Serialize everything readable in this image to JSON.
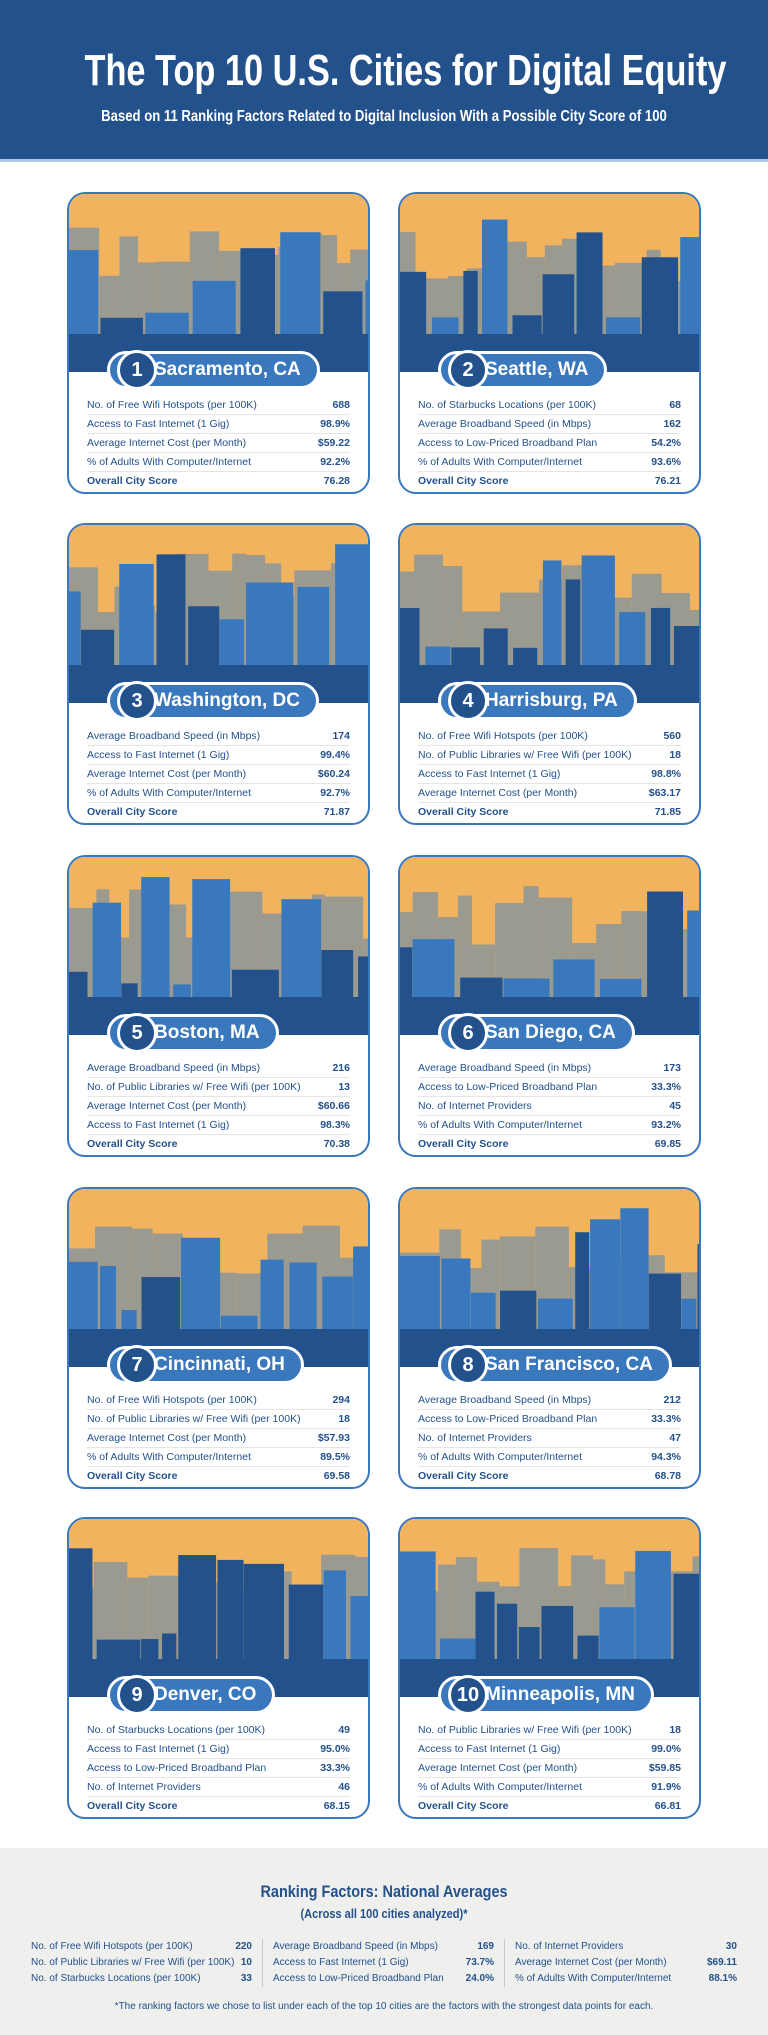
{
  "header": {
    "title": "The Top 10 U.S. Cities for Digital Equity",
    "subtitle": "Based on 11 Ranking Factors Related to Digital Inclusion With a Possible City Score of 100"
  },
  "colors": {
    "navy": "#23518c",
    "blue": "#3a78bd",
    "sky": "#f2b35e",
    "gray": "#9a9a90"
  },
  "cities": [
    {
      "rank": "1",
      "name": "Sacramento, CA",
      "rows": [
        [
          "No. of Free Wifi Hotspots (per 100K)",
          "688"
        ],
        [
          "Access to Fast Internet (1 Gig)",
          "98.9%"
        ],
        [
          "Average Internet Cost (per Month)",
          "$59.22"
        ],
        [
          "% of Adults With Computer/Internet",
          "92.2%"
        ],
        [
          "Overall City Score",
          "76.28"
        ]
      ]
    },
    {
      "rank": "2",
      "name": "Seattle, WA",
      "rows": [
        [
          "No. of Starbucks Locations (per 100K)",
          "68"
        ],
        [
          "Average Broadband Speed (in Mbps)",
          "162"
        ],
        [
          "Access to Low-Priced Broadband Plan",
          "54.2%"
        ],
        [
          "% of Adults With Computer/Internet",
          "93.6%"
        ],
        [
          "Overall City Score",
          "76.21"
        ]
      ]
    },
    {
      "rank": "3",
      "name": "Washington, DC",
      "rows": [
        [
          "Average Broadband Speed (in Mbps)",
          "174"
        ],
        [
          "Access to Fast Internet (1 Gig)",
          "99.4%"
        ],
        [
          "Average Internet Cost (per Month)",
          "$60.24"
        ],
        [
          "% of Adults With Computer/Internet",
          "92.7%"
        ],
        [
          "Overall City Score",
          "71.87"
        ]
      ]
    },
    {
      "rank": "4",
      "name": "Harrisburg, PA",
      "rows": [
        [
          "No. of Free Wifi Hotspots (per 100K)",
          "560"
        ],
        [
          "No. of Public Libraries w/ Free Wifi (per 100K)",
          "18"
        ],
        [
          "Access to Fast Internet (1 Gig)",
          "98.8%"
        ],
        [
          "Average Internet Cost (per Month)",
          "$63.17"
        ],
        [
          "Overall City Score",
          "71.85"
        ]
      ]
    },
    {
      "rank": "5",
      "name": "Boston, MA",
      "rows": [
        [
          "Average Broadband Speed (in Mbps)",
          "216"
        ],
        [
          "No. of Public Libraries w/ Free Wifi (per 100K)",
          "13"
        ],
        [
          "Average Internet Cost (per Month)",
          "$60.66"
        ],
        [
          "Access to Fast Internet (1 Gig)",
          "98.3%"
        ],
        [
          "Overall City Score",
          "70.38"
        ]
      ]
    },
    {
      "rank": "6",
      "name": "San Diego, CA",
      "rows": [
        [
          "Average Broadband Speed (in Mbps)",
          "173"
        ],
        [
          "Access to Low-Priced Broadband Plan",
          "33.3%"
        ],
        [
          "No. of Internet Providers",
          "45"
        ],
        [
          "% of Adults With Computer/Internet",
          "93.2%"
        ],
        [
          "Overall City Score",
          "69.85"
        ]
      ]
    },
    {
      "rank": "7",
      "name": "Cincinnati, OH",
      "rows": [
        [
          "No. of Free Wifi Hotspots (per 100K)",
          "294"
        ],
        [
          "No. of Public Libraries w/ Free Wifi (per 100K)",
          "18"
        ],
        [
          "Average Internet Cost (per Month)",
          "$57.93"
        ],
        [
          "% of Adults With Computer/Internet",
          "89.5%"
        ],
        [
          "Overall City Score",
          "69.58"
        ]
      ]
    },
    {
      "rank": "8",
      "name": "San Francisco, CA",
      "rows": [
        [
          "Average Broadband Speed (in Mbps)",
          "212"
        ],
        [
          "Access to Low-Priced Broadband Plan",
          "33.3%"
        ],
        [
          "No. of Internet Providers",
          "47"
        ],
        [
          "% of Adults With Computer/Internet",
          "94.3%"
        ],
        [
          "Overall City Score",
          "68.78"
        ]
      ]
    },
    {
      "rank": "9",
      "name": "Denver, CO",
      "rows": [
        [
          "No. of Starbucks Locations (per 100K)",
          "49"
        ],
        [
          "Access to Fast Internet (1 Gig)",
          "95.0%"
        ],
        [
          "Access to Low-Priced Broadband Plan",
          "33.3%"
        ],
        [
          "No. of Internet Providers",
          "46"
        ],
        [
          "Overall City Score",
          "68.15"
        ]
      ]
    },
    {
      "rank": "10",
      "name": "Minneapolis, MN",
      "rows": [
        [
          "No. of Public Libraries w/ Free Wifi (per 100K)",
          "18"
        ],
        [
          "Access to Fast Internet (1 Gig)",
          "99.0%"
        ],
        [
          "Average Internet Cost (per Month)",
          "$59.85"
        ],
        [
          "% of Adults With Computer/Internet",
          "91.9%"
        ],
        [
          "Overall City Score",
          "66.81"
        ]
      ]
    }
  ],
  "national": {
    "title": "Ranking Factors: National Averages",
    "subtitle": "(Across all 100 cities analyzed)*",
    "columns": [
      [
        [
          "No. of Free Wifi Hotspots (per 100K)",
          "220"
        ],
        [
          "No. of Public Libraries w/ Free Wifi (per 100K)",
          "10"
        ],
        [
          "No. of Starbucks Locations (per 100K)",
          "33"
        ]
      ],
      [
        [
          "Average Broadband Speed (in Mbps)",
          "169"
        ],
        [
          "Access to Fast Internet (1 Gig)",
          "73.7%"
        ],
        [
          "Access to Low-Priced Broadband Plan",
          "24.0%"
        ]
      ],
      [
        [
          "No. of Internet Providers",
          "30"
        ],
        [
          "Average Internet Cost (per Month)",
          "$69.11"
        ],
        [
          "% of Adults With Computer/Internet",
          "88.1%"
        ]
      ]
    ],
    "note": "*The ranking factors we chose to list under each of the top 10 cities are the factors with the strongest data points for each."
  }
}
